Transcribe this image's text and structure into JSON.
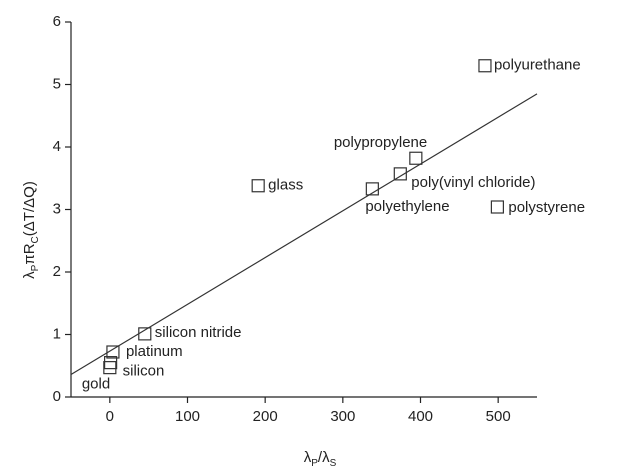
{
  "chart_data": {
    "type": "scatter",
    "x_label_parts": [
      "λ",
      "P",
      "/λ",
      "S"
    ],
    "y_label_parts": [
      "λ",
      "P",
      "πR",
      "C",
      "(ΔT/ΔQ)"
    ],
    "labels": [
      "gold",
      "silicon",
      "platinum",
      "silicon nitride",
      "glass",
      "polyethylene",
      "poly(vinyl chloride)",
      "polypropylene",
      "polystyrene",
      "polyurethane"
    ],
    "x": [
      0,
      1,
      4,
      45,
      191,
      338,
      374,
      394,
      499,
      483
    ],
    "values": [
      0.47,
      0.55,
      0.72,
      1.01,
      3.38,
      3.33,
      3.57,
      3.82,
      3.04,
      5.3
    ],
    "fit": {
      "x": [
        -50,
        550
      ],
      "values": [
        0.36,
        4.85
      ]
    },
    "xlim": [
      -50,
      550
    ],
    "xticks": [
      0,
      100,
      200,
      300,
      400,
      500
    ],
    "ylim": [
      0,
      6
    ],
    "yticks": [
      0,
      1,
      2,
      3,
      4,
      5,
      6
    ],
    "color": "#333333"
  }
}
